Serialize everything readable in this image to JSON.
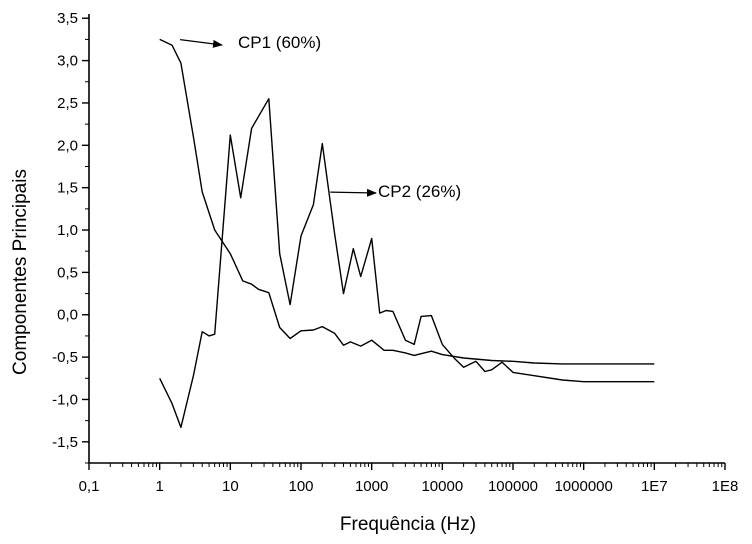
{
  "chart_data": {
    "type": "line",
    "xscale": "log",
    "xlabel": "Frequência (Hz)",
    "ylabel": "Componentes Principais",
    "xlim": [
      0.1,
      100000000
    ],
    "ylim": [
      -1.75,
      3.55
    ],
    "grid": false,
    "xticks": [
      {
        "value": 0.1,
        "label": "0,1"
      },
      {
        "value": 1,
        "label": "1"
      },
      {
        "value": 10,
        "label": "10"
      },
      {
        "value": 100,
        "label": "100"
      },
      {
        "value": 1000,
        "label": "1000"
      },
      {
        "value": 10000,
        "label": "10000"
      },
      {
        "value": 100000,
        "label": "100000"
      },
      {
        "value": 1000000,
        "label": "1000000"
      },
      {
        "value": 10000000,
        "label": "1E7"
      },
      {
        "value": 100000000,
        "label": "1E8"
      }
    ],
    "yticks": [
      {
        "value": 3.5,
        "label": "3,5"
      },
      {
        "value": 3.0,
        "label": "3,0"
      },
      {
        "value": 2.5,
        "label": "2,5"
      },
      {
        "value": 2.0,
        "label": "2,0"
      },
      {
        "value": 1.5,
        "label": "1,5"
      },
      {
        "value": 1.0,
        "label": "1,0"
      },
      {
        "value": 0.5,
        "label": "0,5"
      },
      {
        "value": 0.0,
        "label": "0,0"
      },
      {
        "value": -0.5,
        "label": "-0,5"
      },
      {
        "value": -1.0,
        "label": "-1,0"
      },
      {
        "value": -1.5,
        "label": "-1,5"
      }
    ],
    "series": [
      {
        "name": "CP1 (60%)",
        "x": [
          1,
          1.5,
          2,
          3,
          4,
          6,
          10,
          15,
          20,
          25,
          35,
          50,
          70,
          100,
          150,
          200,
          300,
          400,
          500,
          700,
          1000,
          1500,
          2000,
          3000,
          4000,
          5000,
          7000,
          10000,
          20000,
          50000,
          100000,
          200000,
          500000,
          1000000,
          2000000,
          5000000,
          10000000
        ],
        "y": [
          3.25,
          3.18,
          2.97,
          2.1,
          1.45,
          1.0,
          0.72,
          0.4,
          0.36,
          0.3,
          0.26,
          -0.15,
          -0.28,
          -0.19,
          -0.18,
          -0.14,
          -0.22,
          -0.36,
          -0.32,
          -0.37,
          -0.3,
          -0.42,
          -0.42,
          -0.45,
          -0.48,
          -0.46,
          -0.43,
          -0.47,
          -0.51,
          -0.54,
          -0.55,
          -0.57,
          -0.58,
          -0.58,
          -0.58,
          -0.58,
          -0.58
        ]
      },
      {
        "name": "CP2 (26%)",
        "x": [
          1,
          1.5,
          2,
          3,
          4,
          5,
          6,
          10,
          14,
          20,
          35,
          50,
          70,
          100,
          150,
          200,
          300,
          400,
          550,
          700,
          1000,
          1300,
          1600,
          2000,
          3000,
          4000,
          5000,
          7000,
          10000,
          15000,
          20000,
          30000,
          40000,
          50000,
          70000,
          100000,
          200000,
          500000,
          1000000,
          10000000
        ],
        "y": [
          -0.75,
          -1.05,
          -1.33,
          -0.72,
          -0.2,
          -0.25,
          -0.23,
          2.12,
          1.38,
          2.2,
          2.55,
          0.72,
          0.12,
          0.93,
          1.3,
          2.02,
          0.95,
          0.25,
          0.78,
          0.45,
          0.9,
          0.02,
          0.05,
          0.04,
          -0.3,
          -0.35,
          -0.02,
          -0.01,
          -0.35,
          -0.52,
          -0.62,
          -0.55,
          -0.67,
          -0.65,
          -0.56,
          -0.68,
          -0.72,
          -0.77,
          -0.79,
          -0.79
        ]
      }
    ],
    "annotations": [
      {
        "text": "CP1 (60%)",
        "series": 0,
        "arrow_to": {
          "x": 1.5,
          "y": 3.2
        }
      },
      {
        "text": "CP2 (26%)",
        "series": 1,
        "arrow_to": {
          "x": 200,
          "y": 1.4
        }
      }
    ]
  }
}
